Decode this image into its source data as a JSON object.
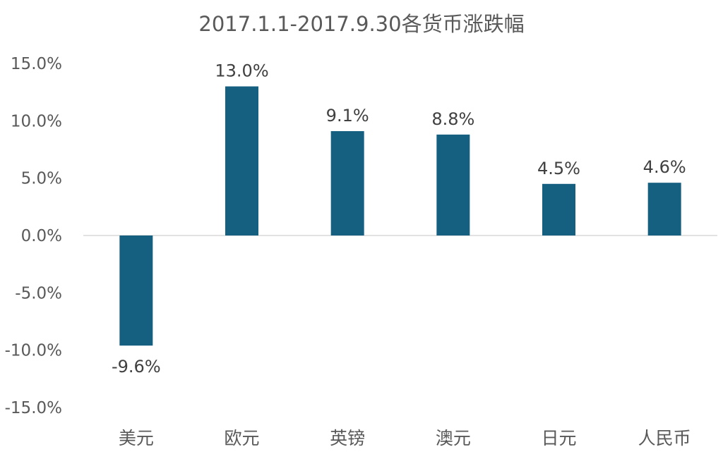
{
  "chart_data": {
    "type": "bar",
    "title": "2017.1.1-2017.9.30各货币涨跌幅",
    "xlabel": "",
    "ylabel": "",
    "categories": [
      "美元",
      "欧元",
      "英镑",
      "澳元",
      "日元",
      "人民币"
    ],
    "values": [
      -9.6,
      13.0,
      9.1,
      8.8,
      4.5,
      4.6
    ],
    "data_labels": [
      "-9.6%",
      "13.0%",
      "9.1%",
      "8.8%",
      "4.5%",
      "4.6%"
    ],
    "ylim": [
      -15,
      15
    ],
    "yticks": [
      15,
      10,
      5,
      0,
      -5,
      -10,
      -15
    ],
    "ytick_labels": [
      "15.0%",
      "10.0%",
      "5.0%",
      "0.0%",
      "-5.0%",
      "-10.0%",
      "-15.0%"
    ],
    "bar_color": "#155f81",
    "grid": false,
    "legend": "none"
  }
}
